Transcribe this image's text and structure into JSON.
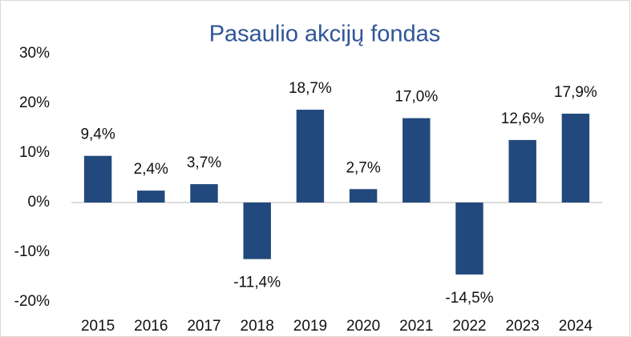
{
  "chart_data": {
    "type": "bar",
    "title": "Pasaulio akcijų fondas",
    "categories": [
      "2015",
      "2016",
      "2017",
      "2018",
      "2019",
      "2020",
      "2021",
      "2022",
      "2023",
      "2024"
    ],
    "values": [
      9.4,
      2.4,
      3.7,
      -11.4,
      18.7,
      2.7,
      17.0,
      -14.5,
      12.6,
      17.9
    ],
    "value_labels": [
      "9,4%",
      "2,4%",
      "3,7%",
      "-11,4%",
      "18,7%",
      "2,7%",
      "17,0%",
      "-14,5%",
      "12,6%",
      "17,9%"
    ],
    "color": "#22497d",
    "ylim": [
      -20,
      30
    ],
    "yticks": [
      {
        "value": -20,
        "label": "-20%"
      },
      {
        "value": -10,
        "label": "-10%"
      },
      {
        "value": 0,
        "label": "0%"
      },
      {
        "value": 10,
        "label": "10%"
      },
      {
        "value": 20,
        "label": "20%"
      },
      {
        "value": 30,
        "label": "30%"
      }
    ],
    "grid": false
  }
}
